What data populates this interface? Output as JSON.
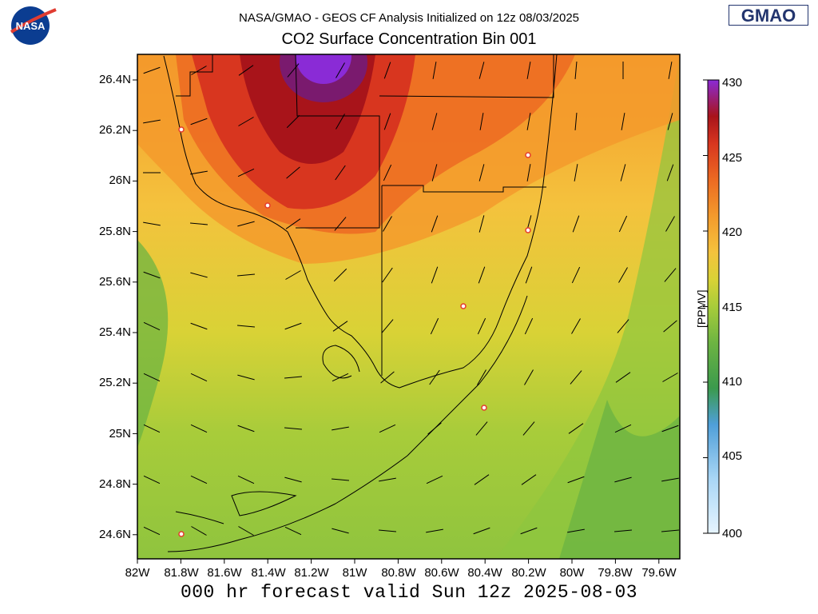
{
  "header": {
    "title": "NASA/GMAO - GEOS CF Analysis Initialized on 12z 08/03/2025",
    "subtitle": "CO2 Surface Concentration Bin 001",
    "nasa_logo_text": "NASA",
    "gmao_logo_text": "GMAO"
  },
  "map": {
    "region": "South Florida",
    "lat_labels": [
      "26.4N",
      "26.2N",
      "26N",
      "25.8N",
      "25.6N",
      "25.4N",
      "25.2N",
      "25N",
      "24.8N",
      "24.6N"
    ],
    "lon_labels": [
      "82W",
      "81.8W",
      "81.6W",
      "81.4W",
      "81.2W",
      "81W",
      "80.8W",
      "80.6W",
      "80.4W",
      "80.2W",
      "80W",
      "79.8W",
      "79.6W"
    ],
    "lat_range": [
      24.5,
      26.5
    ],
    "lon_range": [
      -82.0,
      -79.5
    ],
    "field": "CO2 surface concentration",
    "max_location": "north-central (around 81.2W, 26.4N)",
    "overlays": [
      "state/county boundaries",
      "coastline",
      "wind barbs",
      "city markers"
    ]
  },
  "colorbar": {
    "unit": "[PPMV]",
    "ticks": [
      "400",
      "405",
      "410",
      "415",
      "420",
      "425",
      "430"
    ],
    "range": [
      400,
      430
    ],
    "colors": [
      "#e6f4ff",
      "#a9d6f5",
      "#4f9fd9",
      "#3b9a4d",
      "#6db442",
      "#a8cc3a",
      "#d9d236",
      "#f4c23d",
      "#f39a2c",
      "#ec6a22",
      "#d8361f",
      "#a8141a",
      "#7a1a6e",
      "#8a2bd6"
    ]
  },
  "footer": {
    "text": "000 hr forecast valid Sun 12z 2025-08-03"
  }
}
